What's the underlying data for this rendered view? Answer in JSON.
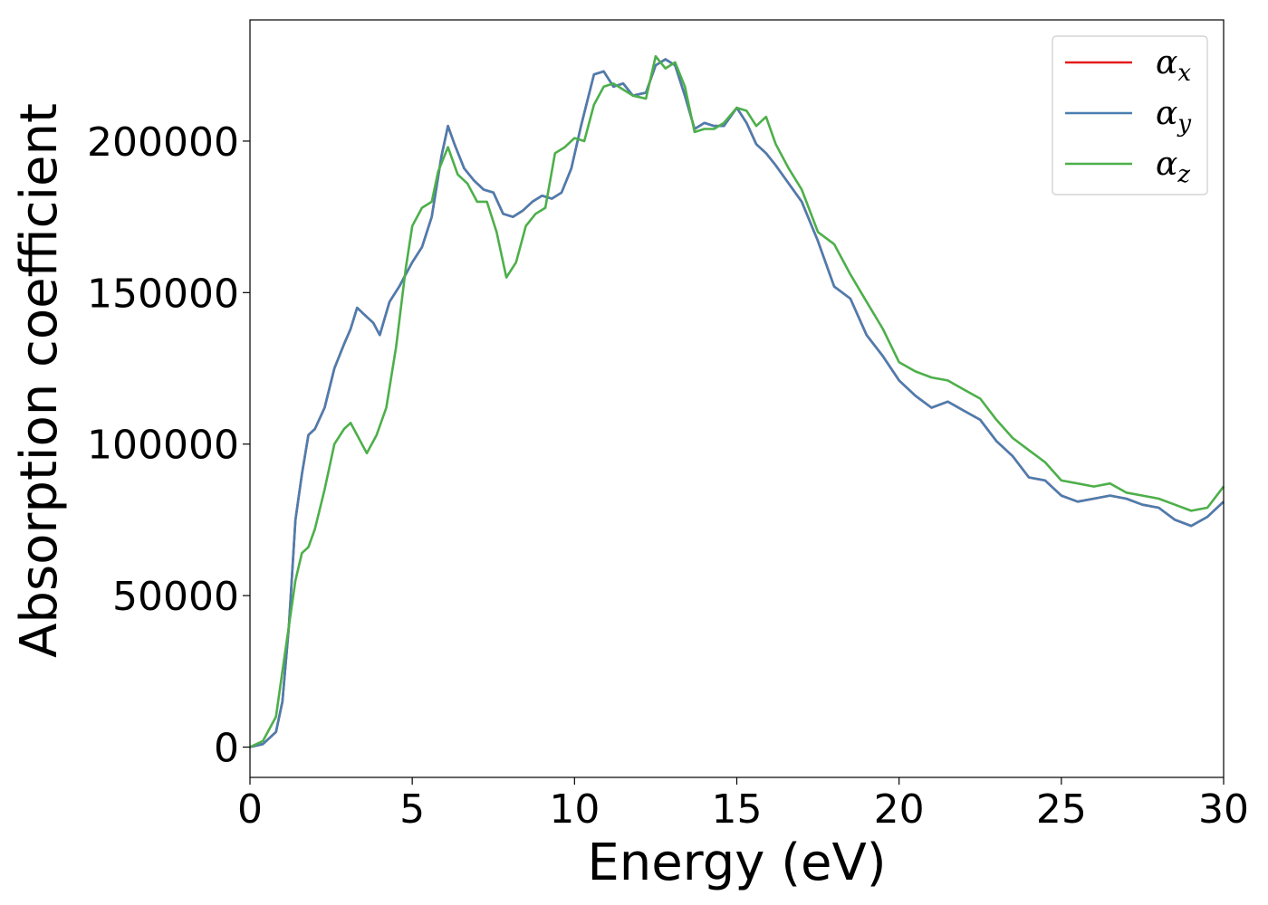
{
  "chart_data": {
    "type": "line",
    "title": "",
    "xlabel": "Energy (eV)",
    "ylabel": "Absorption coefficient",
    "xlim": [
      0,
      30
    ],
    "ylim": [
      -10000,
      240000
    ],
    "xticks": [
      0,
      5,
      10,
      15,
      20,
      25,
      30
    ],
    "xtick_labels": [
      "0",
      "5",
      "10",
      "15",
      "20",
      "25",
      "30"
    ],
    "yticks": [
      0,
      50000,
      100000,
      150000,
      200000
    ],
    "ytick_labels": [
      "0",
      "50000",
      "100000",
      "150000",
      "200000"
    ],
    "grid": false,
    "legend_position": "top-right",
    "series": [
      {
        "name": "αx",
        "legend_symbol": "α",
        "legend_sub": "x",
        "color": "#e41a1c",
        "x": [
          0,
          0.4,
          0.8,
          1.0,
          1.2,
          1.4,
          1.6,
          1.8,
          2.0,
          2.3,
          2.6,
          2.9,
          3.1,
          3.3,
          3.5,
          3.8,
          4.0,
          4.3,
          4.6,
          5.0,
          5.3,
          5.6,
          5.9,
          6.1,
          6.3,
          6.6,
          6.9,
          7.2,
          7.5,
          7.8,
          8.1,
          8.4,
          8.7,
          9.0,
          9.3,
          9.6,
          9.9,
          10.2,
          10.6,
          10.9,
          11.2,
          11.5,
          11.8,
          12.2,
          12.5,
          12.8,
          13.1,
          13.4,
          13.7,
          14.0,
          14.3,
          14.6,
          15.0,
          15.3,
          15.6,
          15.9,
          16.2,
          16.6,
          17.0,
          17.5,
          18.0,
          18.5,
          19.0,
          19.5,
          20.0,
          20.5,
          21.0,
          21.5,
          22.0,
          22.5,
          23.0,
          23.5,
          24.0,
          24.5,
          25.0,
          25.5,
          26.0,
          26.5,
          27.0,
          27.5,
          28.0,
          28.5,
          29.0,
          29.5,
          30.0
        ],
        "y": [
          0,
          1000,
          5000,
          15000,
          40000,
          75000,
          90000,
          103000,
          105000,
          112000,
          125000,
          133000,
          138000,
          145000,
          143000,
          140000,
          136000,
          147000,
          152000,
          160000,
          165000,
          175000,
          195000,
          205000,
          199000,
          191000,
          187000,
          184000,
          183000,
          176000,
          175000,
          177000,
          180000,
          182000,
          181000,
          183000,
          191000,
          205000,
          222000,
          223000,
          218000,
          219000,
          215000,
          216000,
          225000,
          227000,
          225000,
          215000,
          204000,
          206000,
          205000,
          205000,
          211000,
          206000,
          199000,
          196000,
          192000,
          186000,
          180000,
          167000,
          152000,
          148000,
          136000,
          129000,
          121000,
          116000,
          112000,
          114000,
          111000,
          108000,
          101000,
          96000,
          89000,
          88000,
          83000,
          81000,
          82000,
          83000,
          82000,
          80000,
          79000,
          75000,
          73000,
          76000,
          81000
        ]
      },
      {
        "name": "αy",
        "legend_symbol": "α",
        "legend_sub": "y",
        "color": "#4a7eb0",
        "x": [
          0,
          0.4,
          0.8,
          1.0,
          1.2,
          1.4,
          1.6,
          1.8,
          2.0,
          2.3,
          2.6,
          2.9,
          3.1,
          3.3,
          3.5,
          3.8,
          4.0,
          4.3,
          4.6,
          5.0,
          5.3,
          5.6,
          5.9,
          6.1,
          6.3,
          6.6,
          6.9,
          7.2,
          7.5,
          7.8,
          8.1,
          8.4,
          8.7,
          9.0,
          9.3,
          9.6,
          9.9,
          10.2,
          10.6,
          10.9,
          11.2,
          11.5,
          11.8,
          12.2,
          12.5,
          12.8,
          13.1,
          13.4,
          13.7,
          14.0,
          14.3,
          14.6,
          15.0,
          15.3,
          15.6,
          15.9,
          16.2,
          16.6,
          17.0,
          17.5,
          18.0,
          18.5,
          19.0,
          19.5,
          20.0,
          20.5,
          21.0,
          21.5,
          22.0,
          22.5,
          23.0,
          23.5,
          24.0,
          24.5,
          25.0,
          25.5,
          26.0,
          26.5,
          27.0,
          27.5,
          28.0,
          28.5,
          29.0,
          29.5,
          30.0
        ],
        "y": [
          0,
          1000,
          5000,
          15000,
          40000,
          75000,
          90000,
          103000,
          105000,
          112000,
          125000,
          133000,
          138000,
          145000,
          143000,
          140000,
          136000,
          147000,
          152000,
          160000,
          165000,
          175000,
          195000,
          205000,
          199000,
          191000,
          187000,
          184000,
          183000,
          176000,
          175000,
          177000,
          180000,
          182000,
          181000,
          183000,
          191000,
          205000,
          222000,
          223000,
          218000,
          219000,
          215000,
          216000,
          225000,
          227000,
          225000,
          215000,
          204000,
          206000,
          205000,
          205000,
          211000,
          206000,
          199000,
          196000,
          192000,
          186000,
          180000,
          167000,
          152000,
          148000,
          136000,
          129000,
          121000,
          116000,
          112000,
          114000,
          111000,
          108000,
          101000,
          96000,
          89000,
          88000,
          83000,
          81000,
          82000,
          83000,
          82000,
          80000,
          79000,
          75000,
          73000,
          76000,
          81000
        ]
      },
      {
        "name": "αz",
        "legend_symbol": "α",
        "legend_sub": "z",
        "color": "#4daf4a",
        "x": [
          0,
          0.4,
          0.8,
          1.0,
          1.2,
          1.4,
          1.6,
          1.8,
          2.0,
          2.3,
          2.6,
          2.9,
          3.1,
          3.3,
          3.6,
          3.9,
          4.2,
          4.5,
          4.8,
          5.0,
          5.3,
          5.6,
          5.8,
          6.1,
          6.4,
          6.7,
          7.0,
          7.3,
          7.6,
          7.9,
          8.2,
          8.5,
          8.8,
          9.1,
          9.4,
          9.7,
          10.0,
          10.3,
          10.6,
          10.9,
          11.2,
          11.5,
          11.8,
          12.2,
          12.5,
          12.8,
          13.1,
          13.4,
          13.7,
          14.0,
          14.3,
          14.6,
          15.0,
          15.3,
          15.6,
          15.9,
          16.2,
          16.6,
          17.0,
          17.5,
          18.0,
          18.5,
          19.0,
          19.5,
          20.0,
          20.5,
          21.0,
          21.5,
          22.0,
          22.5,
          23.0,
          23.5,
          24.0,
          24.5,
          25.0,
          25.5,
          26.0,
          26.5,
          27.0,
          27.5,
          28.0,
          28.5,
          29.0,
          29.5,
          30.0
        ],
        "y": [
          0,
          2000,
          10000,
          25000,
          40000,
          55000,
          64000,
          66000,
          72000,
          85000,
          100000,
          105000,
          107000,
          103000,
          97000,
          103000,
          112000,
          132000,
          158000,
          172000,
          178000,
          180000,
          190000,
          198000,
          189000,
          186000,
          180000,
          180000,
          170000,
          155000,
          160000,
          172000,
          176000,
          178000,
          196000,
          198000,
          201000,
          200000,
          212000,
          218000,
          219000,
          217000,
          215000,
          214000,
          228000,
          224000,
          226000,
          218000,
          203000,
          204000,
          204000,
          206000,
          211000,
          210000,
          205000,
          208000,
          199000,
          191000,
          184000,
          170000,
          166000,
          156000,
          147000,
          138000,
          127000,
          124000,
          122000,
          121000,
          118000,
          115000,
          108000,
          102000,
          98000,
          94000,
          88000,
          87000,
          86000,
          87000,
          84000,
          83000,
          82000,
          80000,
          78000,
          79000,
          86000
        ]
      }
    ]
  }
}
